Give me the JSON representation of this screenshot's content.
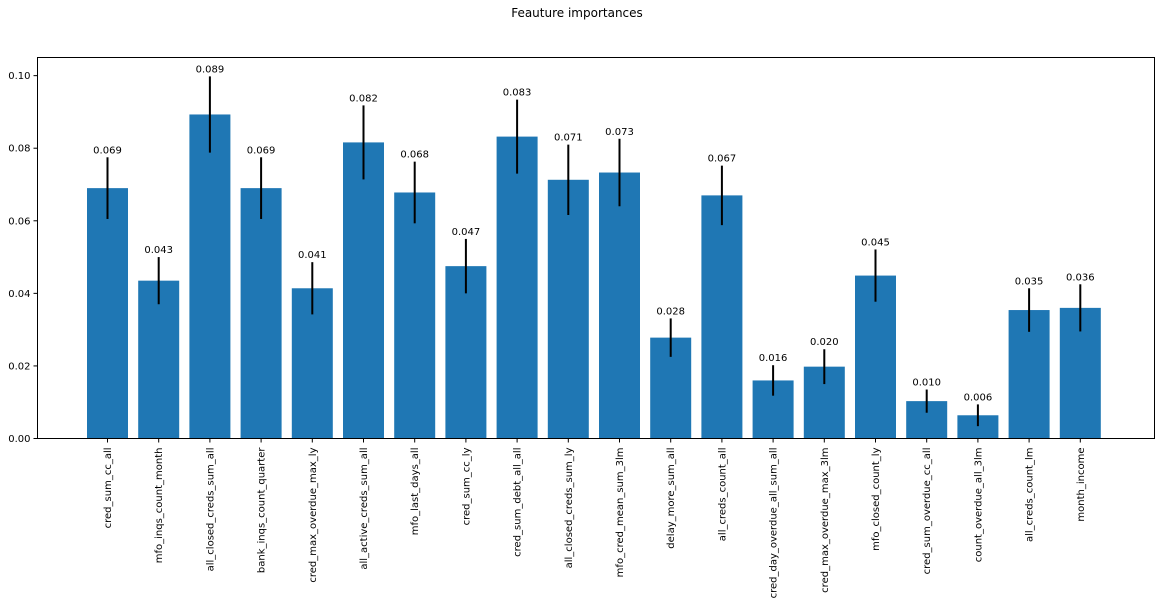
{
  "chart_data": {
    "type": "bar",
    "title": "Feauture importances",
    "xlabel": "",
    "ylabel": "",
    "ylim": [
      0,
      0.105
    ],
    "yticks": [
      0.0,
      0.02,
      0.04,
      0.06,
      0.08,
      0.1
    ],
    "ytick_labels": [
      "0.00",
      "0.02",
      "0.04",
      "0.06",
      "0.08",
      "0.10"
    ],
    "grid": false,
    "bar_color": "#1f77b4",
    "error_bar_color": "#000000",
    "categories": [
      "cred_sum_cc_all",
      "mfo_inqs_count_month",
      "all_closed_creds_sum_all",
      "bank_inqs_count_quarter",
      "cred_max_overdue_max_ly",
      "all_active_creds_sum_all",
      "mfo_last_days_all",
      "cred_sum_cc_ly",
      "cred_sum_debt_all_all",
      "all_closed_creds_sum_ly",
      "mfo_cred_mean_sum_3lm",
      "delay_more_sum_all",
      "all_creds_count_all",
      "cred_day_overdue_all_sum_all",
      "cred_max_overdue_max_3lm",
      "mfo_closed_count_ly",
      "cred_sum_overdue_cc_all",
      "count_overdue_all_3lm",
      "all_creds_count_lm",
      "month_income"
    ],
    "values": [
      0.069,
      0.0435,
      0.0893,
      0.069,
      0.0414,
      0.0816,
      0.0678,
      0.0475,
      0.0832,
      0.0713,
      0.0733,
      0.0278,
      0.067,
      0.016,
      0.0198,
      0.0449,
      0.0103,
      0.0064,
      0.0354,
      0.036
    ],
    "value_labels": [
      "0.069",
      "0.043",
      "0.089",
      "0.069",
      "0.041",
      "0.082",
      "0.068",
      "0.047",
      "0.083",
      "0.071",
      "0.073",
      "0.028",
      "0.067",
      "0.016",
      "0.020",
      "0.045",
      "0.010",
      "0.006",
      "0.035",
      "0.036"
    ],
    "errors": [
      0.0085,
      0.0065,
      0.0105,
      0.0085,
      0.0072,
      0.0102,
      0.0085,
      0.0075,
      0.0102,
      0.0097,
      0.0093,
      0.0053,
      0.0082,
      0.0042,
      0.0048,
      0.0072,
      0.0032,
      0.003,
      0.006,
      0.0065
    ]
  }
}
